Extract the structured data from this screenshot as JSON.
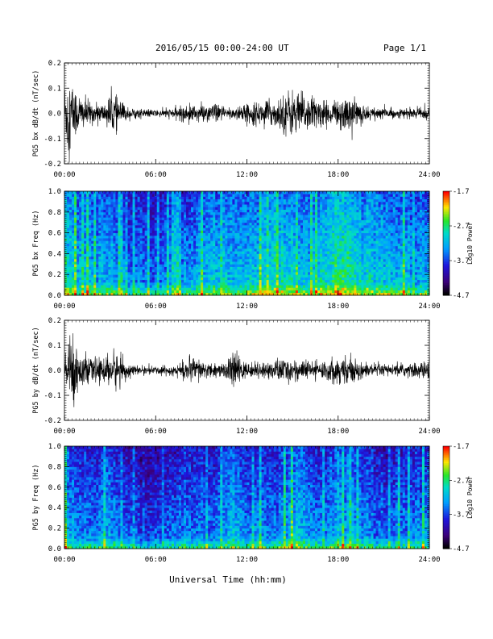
{
  "header": {
    "title": "2016/05/15  00:00-24:00 UT",
    "page": "Page 1/1"
  },
  "xlabel": "Universal Time (hh:mm)",
  "chart_data": [
    {
      "type": "line",
      "ylabel": "PG5 bx dB/dt (nT/sec)",
      "xlim": [
        0,
        24
      ],
      "ylim": [
        -0.2,
        0.2
      ],
      "xticks": [
        "00:00",
        "06:00",
        "12:00",
        "18:00",
        "24:00"
      ],
      "yticks": [
        "-0.2",
        "-0.1",
        "0.0",
        "0.1",
        "0.2"
      ],
      "envelope": [
        [
          0.0,
          0.14
        ],
        [
          0.3,
          0.18
        ],
        [
          0.7,
          0.11
        ],
        [
          1.2,
          0.07
        ],
        [
          2.0,
          0.04
        ],
        [
          2.6,
          0.04
        ],
        [
          3.2,
          0.09
        ],
        [
          3.6,
          0.06
        ],
        [
          4.2,
          0.025
        ],
        [
          5.0,
          0.02
        ],
        [
          6.0,
          0.015
        ],
        [
          7.0,
          0.02
        ],
        [
          8.0,
          0.035
        ],
        [
          9.0,
          0.04
        ],
        [
          10.0,
          0.035
        ],
        [
          11.0,
          0.03
        ],
        [
          12.0,
          0.04
        ],
        [
          13.0,
          0.05
        ],
        [
          14.0,
          0.06
        ],
        [
          14.7,
          0.1
        ],
        [
          15.5,
          0.09
        ],
        [
          16.5,
          0.07
        ],
        [
          17.5,
          0.04
        ],
        [
          18.3,
          0.08
        ],
        [
          19.0,
          0.06
        ],
        [
          20.0,
          0.03
        ],
        [
          21.0,
          0.025
        ],
        [
          22.0,
          0.02
        ],
        [
          23.0,
          0.02
        ],
        [
          24.0,
          0.03
        ]
      ]
    },
    {
      "type": "heatmap",
      "ylabel": "PG5 bx Freq (Hz)",
      "xlim": [
        0,
        24
      ],
      "ylim": [
        0.0,
        1.0
      ],
      "xticks": [
        "00:00",
        "06:00",
        "12:00",
        "18:00",
        "24:00"
      ],
      "yticks": [
        "0.0",
        "0.2",
        "0.4",
        "0.6",
        "0.8",
        "1.0"
      ],
      "colorbar": {
        "label": "Log10 Power",
        "ticks": [
          "-1.7",
          "-2.7",
          "-3.7",
          "-4.7"
        ],
        "range": [
          -4.7,
          -1.7
        ]
      },
      "activity": [
        [
          0.0,
          0.65
        ],
        [
          1.0,
          0.55
        ],
        [
          2.0,
          0.5
        ],
        [
          3.0,
          0.55
        ],
        [
          4.0,
          0.45
        ],
        [
          6.0,
          0.42
        ],
        [
          8.0,
          0.48
        ],
        [
          10.0,
          0.55
        ],
        [
          12.0,
          0.55
        ],
        [
          14.0,
          0.62
        ],
        [
          16.0,
          0.55
        ],
        [
          18.0,
          0.7
        ],
        [
          19.5,
          0.6
        ],
        [
          21.0,
          0.55
        ],
        [
          24.0,
          0.5
        ]
      ]
    },
    {
      "type": "line",
      "ylabel": "PG5 by dB/dt (nT/sec)",
      "xlim": [
        0,
        24
      ],
      "ylim": [
        -0.2,
        0.2
      ],
      "xticks": [
        "00:00",
        "06:00",
        "12:00",
        "18:00",
        "24:00"
      ],
      "yticks": [
        "-0.2",
        "-0.1",
        "0.0",
        "0.1",
        "0.2"
      ],
      "envelope": [
        [
          0.0,
          0.05
        ],
        [
          0.4,
          0.17
        ],
        [
          0.8,
          0.1
        ],
        [
          1.5,
          0.05
        ],
        [
          2.5,
          0.05
        ],
        [
          3.2,
          0.09
        ],
        [
          3.8,
          0.05
        ],
        [
          4.5,
          0.02
        ],
        [
          5.5,
          0.015
        ],
        [
          6.5,
          0.02
        ],
        [
          7.5,
          0.03
        ],
        [
          8.5,
          0.06
        ],
        [
          9.5,
          0.03
        ],
        [
          10.5,
          0.035
        ],
        [
          11.2,
          0.08
        ],
        [
          12.0,
          0.03
        ],
        [
          13.0,
          0.03
        ],
        [
          14.0,
          0.05
        ],
        [
          15.0,
          0.05
        ],
        [
          16.0,
          0.04
        ],
        [
          17.0,
          0.04
        ],
        [
          18.0,
          0.06
        ],
        [
          19.0,
          0.05
        ],
        [
          20.0,
          0.03
        ],
        [
          22.0,
          0.025
        ],
        [
          24.0,
          0.04
        ]
      ]
    },
    {
      "type": "heatmap",
      "ylabel": "PG5 by Freq (Hz)",
      "xlim": [
        0,
        24
      ],
      "ylim": [
        0.0,
        1.0
      ],
      "xticks": [
        "00:00",
        "06:00",
        "12:00",
        "18:00",
        "24:00"
      ],
      "yticks": [
        "0.0",
        "0.2",
        "0.4",
        "0.6",
        "0.8",
        "1.0"
      ],
      "colorbar": {
        "label": "Log10 Power",
        "ticks": [
          "-1.7",
          "-2.7",
          "-3.7",
          "-4.7"
        ],
        "range": [
          -4.7,
          -1.7
        ]
      },
      "activity": [
        [
          0.0,
          0.55
        ],
        [
          1.0,
          0.45
        ],
        [
          2.0,
          0.45
        ],
        [
          3.0,
          0.5
        ],
        [
          4.0,
          0.38
        ],
        [
          6.0,
          0.35
        ],
        [
          8.0,
          0.45
        ],
        [
          10.0,
          0.42
        ],
        [
          11.0,
          0.55
        ],
        [
          12.0,
          0.42
        ],
        [
          14.0,
          0.45
        ],
        [
          15.0,
          0.55
        ],
        [
          17.0,
          0.45
        ],
        [
          18.0,
          0.55
        ],
        [
          21.0,
          0.4
        ],
        [
          24.0,
          0.45
        ]
      ]
    }
  ]
}
